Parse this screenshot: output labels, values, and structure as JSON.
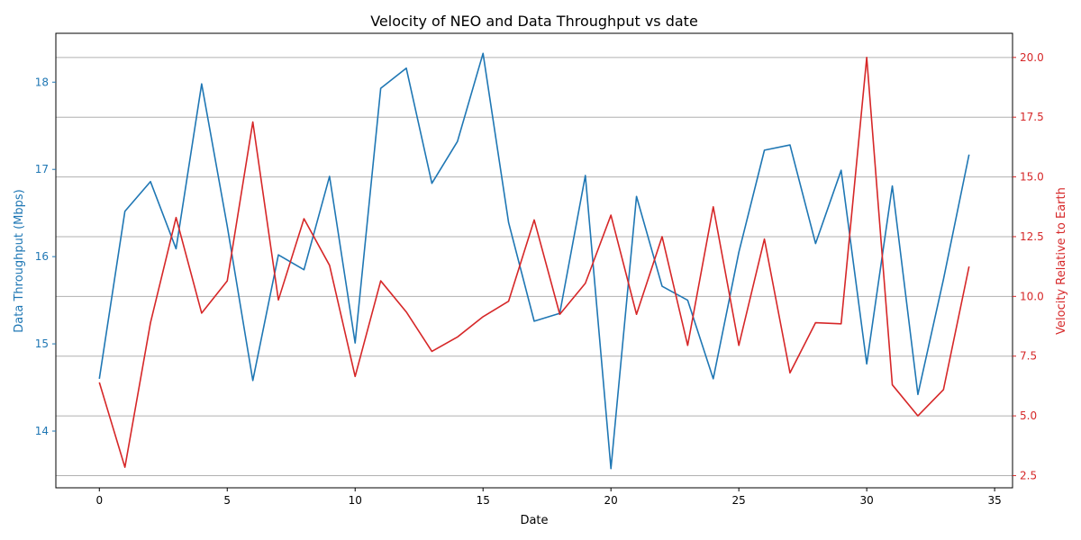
{
  "chart_data": {
    "type": "line",
    "title": "Velocity of NEO and Data Throughput vs date",
    "xlabel": "Date",
    "ylabel_left": "Data Throughput (Mbps)",
    "ylabel_right": "Velocity Relative to Earth",
    "colors": {
      "left": "#1f77b4",
      "right": "#d62728",
      "grid": "#b0b0b0",
      "axis": "#000000"
    },
    "grid": true,
    "xlim": [
      -1.7,
      35.7
    ],
    "ylim_left": [
      13.35,
      18.56
    ],
    "ylim_right": [
      1.99,
      21.01
    ],
    "x_ticks": [
      0,
      5,
      10,
      15,
      20,
      25,
      30,
      35
    ],
    "y_ticks_left": [
      14,
      15,
      16,
      17,
      18
    ],
    "y_ticks_right": [
      2.5,
      5.0,
      7.5,
      10.0,
      12.5,
      15.0,
      17.5,
      20.0
    ],
    "y_tick_labels_right": [
      "2.5",
      "5.0",
      "7.5",
      "10.0",
      "12.5",
      "15.0",
      "17.5",
      "20.0"
    ],
    "x": [
      0,
      1,
      2,
      3,
      4,
      5,
      6,
      7,
      8,
      9,
      10,
      11,
      12,
      13,
      14,
      15,
      16,
      17,
      18,
      19,
      20,
      21,
      22,
      23,
      24,
      25,
      26,
      27,
      28,
      29,
      30,
      31,
      32,
      33,
      34
    ],
    "series": [
      {
        "axis": "left",
        "color": "#1f77b4",
        "values": [
          14.6,
          16.52,
          16.86,
          16.09,
          17.98,
          16.35,
          14.58,
          16.02,
          15.85,
          16.92,
          15.01,
          17.93,
          18.16,
          16.84,
          17.32,
          18.33,
          16.39,
          15.26,
          15.35,
          16.93,
          13.57,
          16.69,
          15.66,
          15.5,
          14.6,
          16.05,
          17.22,
          17.28,
          16.15,
          16.99,
          14.77,
          16.81,
          14.42,
          15.74,
          17.17
        ]
      },
      {
        "axis": "right",
        "color": "#d62728",
        "values": [
          6.4,
          2.85,
          8.9,
          13.3,
          9.3,
          10.65,
          17.3,
          9.85,
          13.25,
          11.3,
          6.65,
          10.65,
          9.35,
          7.7,
          8.3,
          9.15,
          9.8,
          13.2,
          9.25,
          10.55,
          13.4,
          9.25,
          12.5,
          7.95,
          13.75,
          7.95,
          12.4,
          6.8,
          8.9,
          8.85,
          20.0,
          6.3,
          5.0,
          6.1,
          11.25
        ]
      }
    ]
  }
}
